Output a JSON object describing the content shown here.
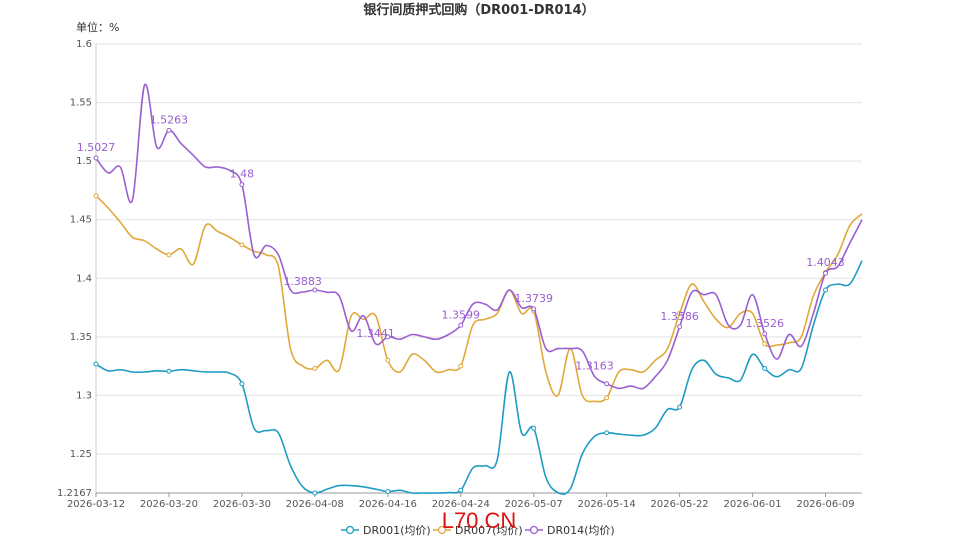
{
  "chart_data": {
    "type": "line",
    "title": "银行间质押式回购（DR001-DR014）",
    "unit_label": "单位：%",
    "x_dates": [
      "2026-03-12",
      "2026-03-13",
      "2026-03-16",
      "2026-03-17",
      "2026-03-18",
      "2026-03-19",
      "2026-03-20",
      "2026-03-23",
      "2026-03-24",
      "2026-03-25",
      "2026-03-26",
      "2026-03-27",
      "2026-03-30",
      "2026-03-31",
      "2026-04-01",
      "2026-04-02",
      "2026-04-03",
      "2026-04-07",
      "2026-04-08",
      "2026-04-09",
      "2026-04-10",
      "2026-04-13",
      "2026-04-14",
      "2026-04-15",
      "2026-04-16",
      "2026-04-17",
      "2026-04-20",
      "2026-04-21",
      "2026-04-22",
      "2026-04-23",
      "2026-04-24",
      "2026-04-27",
      "2026-04-28",
      "2026-04-29",
      "2026-04-30",
      "2026-05-06",
      "2026-05-07",
      "2026-05-08",
      "2026-05-09",
      "2026-05-11",
      "2026-05-12",
      "2026-05-13",
      "2026-05-14",
      "2026-05-15",
      "2026-05-18",
      "2026-05-19",
      "2026-05-20",
      "2026-05-21",
      "2026-05-22",
      "2026-05-25",
      "2026-05-26",
      "2026-05-27",
      "2026-05-28",
      "2026-05-29",
      "2026-06-01",
      "2026-06-02",
      "2026-06-03",
      "2026-06-04",
      "2026-06-05",
      "2026-06-08",
      "2026-06-09",
      "2026-06-10",
      "2026-06-11",
      "2026-06-12"
    ],
    "x_tick_labels": [
      "2026-03-12",
      "2026-03-20",
      "2026-03-30",
      "2026-04-08",
      "2026-04-16",
      "2026-04-24",
      "2026-05-07",
      "2026-05-14",
      "2026-05-22",
      "2026-06-01",
      "2026-06-09"
    ],
    "ylim": [
      1.2167,
      1.6
    ],
    "y_tick_labels": [
      "1.2167",
      "1.25",
      "1.3",
      "1.35",
      "1.4",
      "1.45",
      "1.5",
      "1.55",
      "1.6"
    ],
    "grid": true,
    "legend_position": "bottom",
    "series": [
      {
        "name": "DR001(均价)",
        "color": "#1f9bc4",
        "values": [
          1.3267,
          1.321,
          1.322,
          1.32,
          1.32,
          1.321,
          1.3206,
          1.322,
          1.321,
          1.32,
          1.32,
          1.319,
          1.31,
          1.272,
          1.27,
          1.268,
          1.24,
          1.222,
          1.2167,
          1.22,
          1.223,
          1.223,
          1.222,
          1.22,
          1.218,
          1.219,
          1.2167,
          1.2167,
          1.2167,
          1.217,
          1.219,
          1.238,
          1.24,
          1.245,
          1.32,
          1.268,
          1.272,
          1.23,
          1.217,
          1.22,
          1.25,
          1.265,
          1.268,
          1.267,
          1.266,
          1.266,
          1.272,
          1.288,
          1.29,
          1.322,
          1.33,
          1.318,
          1.315,
          1.313,
          1.335,
          1.323,
          1.316,
          1.322,
          1.323,
          1.36,
          1.39,
          1.395,
          1.395,
          1.415
        ]
      },
      {
        "name": "DR007(均价)",
        "color": "#e0a83a",
        "values": [
          1.4705,
          1.46,
          1.448,
          1.435,
          1.432,
          1.425,
          1.42,
          1.425,
          1.412,
          1.445,
          1.44,
          1.435,
          1.4285,
          1.423,
          1.42,
          1.41,
          1.34,
          1.325,
          1.323,
          1.33,
          1.322,
          1.368,
          1.365,
          1.368,
          1.33,
          1.32,
          1.335,
          1.33,
          1.32,
          1.322,
          1.325,
          1.36,
          1.365,
          1.37,
          1.39,
          1.37,
          1.372,
          1.32,
          1.3,
          1.34,
          1.3,
          1.295,
          1.298,
          1.32,
          1.322,
          1.32,
          1.33,
          1.34,
          1.37,
          1.395,
          1.38,
          1.365,
          1.358,
          1.37,
          1.37,
          1.344,
          1.343,
          1.345,
          1.35,
          1.385,
          1.405,
          1.42,
          1.445,
          1.455
        ]
      },
      {
        "name": "DR014(均价)",
        "color": "#9a5fd0",
        "values": [
          1.5027,
          1.49,
          1.495,
          1.467,
          1.565,
          1.512,
          1.5263,
          1.515,
          1.505,
          1.495,
          1.495,
          1.492,
          1.48,
          1.42,
          1.428,
          1.42,
          1.39,
          1.3883,
          1.39,
          1.388,
          1.385,
          1.355,
          1.368,
          1.3441,
          1.35,
          1.348,
          1.352,
          1.35,
          1.348,
          1.352,
          1.3599,
          1.378,
          1.378,
          1.373,
          1.39,
          1.375,
          1.3739,
          1.34,
          1.34,
          1.34,
          1.338,
          1.3163,
          1.31,
          1.306,
          1.308,
          1.306,
          1.316,
          1.33,
          1.3586,
          1.388,
          1.386,
          1.386,
          1.36,
          1.36,
          1.386,
          1.3526,
          1.331,
          1.352,
          1.342,
          1.37,
          1.4043,
          1.41,
          1.43,
          1.45
        ]
      }
    ],
    "data_labels": [
      {
        "series": 2,
        "index": 0,
        "text": "1.5027"
      },
      {
        "series": 2,
        "index": 6,
        "text": "1.5263"
      },
      {
        "series": 2,
        "index": 12,
        "text": "1.48"
      },
      {
        "series": 2,
        "index": 17,
        "text": "1.3883"
      },
      {
        "series": 2,
        "index": 23,
        "text": "1.3441"
      },
      {
        "series": 2,
        "index": 30,
        "text": "1.3599"
      },
      {
        "series": 2,
        "index": 36,
        "text": "1.3739"
      },
      {
        "series": 2,
        "index": 41,
        "text": "1.3163"
      },
      {
        "series": 2,
        "index": 48,
        "text": "1.3586"
      },
      {
        "series": 2,
        "index": 55,
        "text": "1.3526"
      },
      {
        "series": 2,
        "index": 60,
        "text": "1.4043"
      }
    ],
    "marker_indices": [
      0,
      6,
      12,
      18,
      24,
      30,
      36,
      42,
      48,
      55,
      60
    ]
  },
  "watermark": "L70.CN"
}
